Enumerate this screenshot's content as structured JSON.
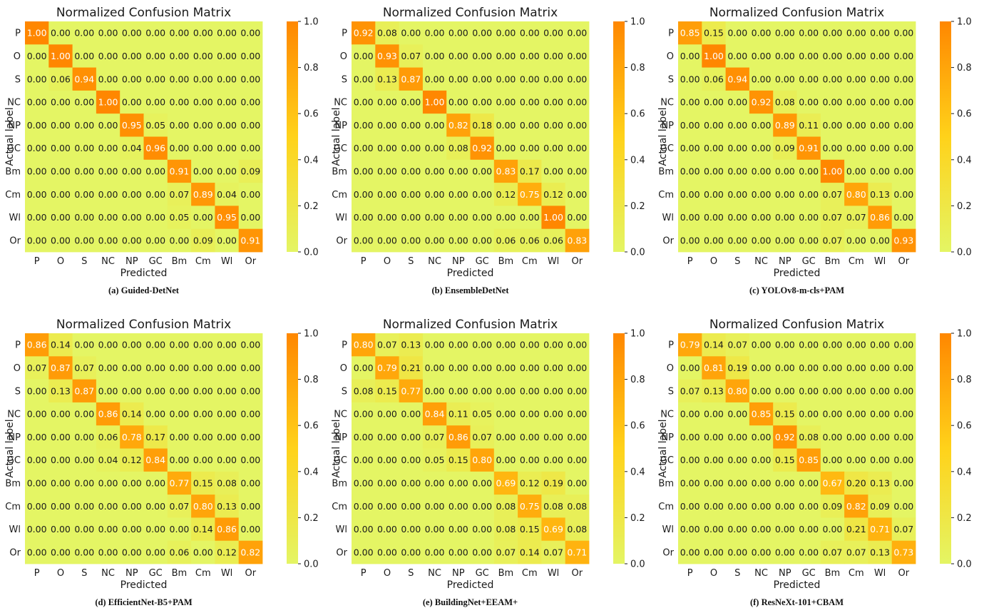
{
  "colors": {
    "low": "#e4f564",
    "mid": "#ffd21a",
    "high": "#ff8700",
    "text_dark": "#1a1a1a",
    "text_light": "#ffffff"
  },
  "colorbar_ticks": [
    "0.0",
    "0.2",
    "0.4",
    "0.6",
    "0.8",
    "1.0"
  ],
  "chart_data": [
    {
      "type": "heatmap",
      "title": "Normalized Confusion Matrix",
      "caption": "(a) Guided-DetNet",
      "xlabel": "Predicted",
      "ylabel": "Actual label",
      "x_categories": [
        "P",
        "O",
        "S",
        "NC",
        "NP",
        "GC",
        "Bm",
        "Cm",
        "Wl",
        "Or"
      ],
      "y_categories": [
        "P",
        "O",
        "S",
        "NC",
        "NP",
        "GC",
        "Bm",
        "Cm",
        "Wl",
        "Or"
      ],
      "zlim": [
        0.0,
        1.0
      ],
      "values": [
        [
          1.0,
          0.0,
          0.0,
          0.0,
          0.0,
          0.0,
          0.0,
          0.0,
          0.0,
          0.0
        ],
        [
          0.0,
          1.0,
          0.0,
          0.0,
          0.0,
          0.0,
          0.0,
          0.0,
          0.0,
          0.0
        ],
        [
          0.0,
          0.06,
          0.94,
          0.0,
          0.0,
          0.0,
          0.0,
          0.0,
          0.0,
          0.0
        ],
        [
          0.0,
          0.0,
          0.0,
          1.0,
          0.0,
          0.0,
          0.0,
          0.0,
          0.0,
          0.0
        ],
        [
          0.0,
          0.0,
          0.0,
          0.0,
          0.95,
          0.05,
          0.0,
          0.0,
          0.0,
          0.0
        ],
        [
          0.0,
          0.0,
          0.0,
          0.0,
          0.04,
          0.96,
          0.0,
          0.0,
          0.0,
          0.0
        ],
        [
          0.0,
          0.0,
          0.0,
          0.0,
          0.0,
          0.0,
          0.91,
          0.0,
          0.0,
          0.09
        ],
        [
          0.0,
          0.0,
          0.0,
          0.0,
          0.0,
          0.0,
          0.07,
          0.89,
          0.04,
          0.0
        ],
        [
          0.0,
          0.0,
          0.0,
          0.0,
          0.0,
          0.0,
          0.05,
          0.0,
          0.95,
          0.0
        ],
        [
          0.0,
          0.0,
          0.0,
          0.0,
          0.0,
          0.0,
          0.0,
          0.09,
          0.0,
          0.91
        ]
      ]
    },
    {
      "type": "heatmap",
      "title": "Normalized Confusion Matrix",
      "caption": "(b) EnsembleDetNet",
      "xlabel": "Predicted",
      "ylabel": "Actual label",
      "x_categories": [
        "P",
        "O",
        "S",
        "NC",
        "NP",
        "GC",
        "Bm",
        "Cm",
        "Wl",
        "Or"
      ],
      "y_categories": [
        "P",
        "O",
        "S",
        "NC",
        "NP",
        "GC",
        "Bm",
        "Cm",
        "Wl",
        "Or"
      ],
      "zlim": [
        0.0,
        1.0
      ],
      "values": [
        [
          0.92,
          0.08,
          0.0,
          0.0,
          0.0,
          0.0,
          0.0,
          0.0,
          0.0,
          0.0
        ],
        [
          0.0,
          0.93,
          0.07,
          0.0,
          0.0,
          0.0,
          0.0,
          0.0,
          0.0,
          0.0
        ],
        [
          0.0,
          0.13,
          0.87,
          0.0,
          0.0,
          0.0,
          0.0,
          0.0,
          0.0,
          0.0
        ],
        [
          0.0,
          0.0,
          0.0,
          1.0,
          0.0,
          0.0,
          0.0,
          0.0,
          0.0,
          0.0
        ],
        [
          0.0,
          0.0,
          0.0,
          0.0,
          0.82,
          0.18,
          0.0,
          0.0,
          0.0,
          0.0
        ],
        [
          0.0,
          0.0,
          0.0,
          0.0,
          0.08,
          0.92,
          0.0,
          0.0,
          0.0,
          0.0
        ],
        [
          0.0,
          0.0,
          0.0,
          0.0,
          0.0,
          0.0,
          0.83,
          0.17,
          0.0,
          0.0
        ],
        [
          0.0,
          0.0,
          0.0,
          0.0,
          0.0,
          0.0,
          0.12,
          0.75,
          0.12,
          0.0
        ],
        [
          0.0,
          0.0,
          0.0,
          0.0,
          0.0,
          0.0,
          0.0,
          0.0,
          1.0,
          0.0
        ],
        [
          0.0,
          0.0,
          0.0,
          0.0,
          0.0,
          0.0,
          0.06,
          0.06,
          0.06,
          0.83
        ]
      ]
    },
    {
      "type": "heatmap",
      "title": "Normalized Confusion Matrix",
      "caption": "(c) YOLOv8-m-cls+PAM",
      "xlabel": "Predicted",
      "ylabel": "Actual label",
      "x_categories": [
        "P",
        "O",
        "S",
        "NC",
        "NP",
        "GC",
        "Bm",
        "Cm",
        "Wl",
        "Or"
      ],
      "y_categories": [
        "P",
        "O",
        "S",
        "NC",
        "NP",
        "GC",
        "Bm",
        "Cm",
        "Wl",
        "Or"
      ],
      "zlim": [
        0.0,
        1.0
      ],
      "values": [
        [
          0.85,
          0.15,
          0.0,
          0.0,
          0.0,
          0.0,
          0.0,
          0.0,
          0.0,
          0.0
        ],
        [
          0.0,
          1.0,
          0.0,
          0.0,
          0.0,
          0.0,
          0.0,
          0.0,
          0.0,
          0.0
        ],
        [
          0.0,
          0.06,
          0.94,
          0.0,
          0.0,
          0.0,
          0.0,
          0.0,
          0.0,
          0.0
        ],
        [
          0.0,
          0.0,
          0.0,
          0.92,
          0.08,
          0.0,
          0.0,
          0.0,
          0.0,
          0.0
        ],
        [
          0.0,
          0.0,
          0.0,
          0.0,
          0.89,
          0.11,
          0.0,
          0.0,
          0.0,
          0.0
        ],
        [
          0.0,
          0.0,
          0.0,
          0.0,
          0.09,
          0.91,
          0.0,
          0.0,
          0.0,
          0.0
        ],
        [
          0.0,
          0.0,
          0.0,
          0.0,
          0.0,
          0.0,
          1.0,
          0.0,
          0.0,
          0.0
        ],
        [
          0.0,
          0.0,
          0.0,
          0.0,
          0.0,
          0.0,
          0.07,
          0.8,
          0.13,
          0.0
        ],
        [
          0.0,
          0.0,
          0.0,
          0.0,
          0.0,
          0.0,
          0.07,
          0.07,
          0.86,
          0.0
        ],
        [
          0.0,
          0.0,
          0.0,
          0.0,
          0.0,
          0.0,
          0.07,
          0.0,
          0.0,
          0.93
        ]
      ]
    },
    {
      "type": "heatmap",
      "title": "Normalized Confusion Matrix",
      "caption": "(d) EfficientNet-B5+PAM",
      "xlabel": "Predicted",
      "ylabel": "Actual label",
      "x_categories": [
        "P",
        "O",
        "S",
        "NC",
        "NP",
        "GC",
        "Bm",
        "Cm",
        "Wl",
        "Or"
      ],
      "y_categories": [
        "P",
        "O",
        "S",
        "NC",
        "NP",
        "GC",
        "Bm",
        "Cm",
        "Wl",
        "Or"
      ],
      "zlim": [
        0.0,
        1.0
      ],
      "values": [
        [
          0.86,
          0.14,
          0.0,
          0.0,
          0.0,
          0.0,
          0.0,
          0.0,
          0.0,
          0.0
        ],
        [
          0.07,
          0.87,
          0.07,
          0.0,
          0.0,
          0.0,
          0.0,
          0.0,
          0.0,
          0.0
        ],
        [
          0.0,
          0.13,
          0.87,
          0.0,
          0.0,
          0.0,
          0.0,
          0.0,
          0.0,
          0.0
        ],
        [
          0.0,
          0.0,
          0.0,
          0.86,
          0.14,
          0.0,
          0.0,
          0.0,
          0.0,
          0.0
        ],
        [
          0.0,
          0.0,
          0.0,
          0.06,
          0.78,
          0.17,
          0.0,
          0.0,
          0.0,
          0.0
        ],
        [
          0.0,
          0.0,
          0.0,
          0.04,
          0.12,
          0.84,
          0.0,
          0.0,
          0.0,
          0.0
        ],
        [
          0.0,
          0.0,
          0.0,
          0.0,
          0.0,
          0.0,
          0.77,
          0.15,
          0.08,
          0.0
        ],
        [
          0.0,
          0.0,
          0.0,
          0.0,
          0.0,
          0.0,
          0.07,
          0.8,
          0.13,
          0.0
        ],
        [
          0.0,
          0.0,
          0.0,
          0.0,
          0.0,
          0.0,
          0.0,
          0.14,
          0.86,
          0.0
        ],
        [
          0.0,
          0.0,
          0.0,
          0.0,
          0.0,
          0.0,
          0.06,
          0.0,
          0.12,
          0.82
        ]
      ]
    },
    {
      "type": "heatmap",
      "title": "Normalized Confusion Matrix",
      "caption": "(e) BuildingNet+EEAM+",
      "xlabel": "Predicted",
      "ylabel": "Actual label",
      "x_categories": [
        "P",
        "O",
        "S",
        "NC",
        "NP",
        "GC",
        "Bm",
        "Cm",
        "Wl",
        "Or"
      ],
      "y_categories": [
        "P",
        "O",
        "S",
        "NC",
        "NP",
        "GC",
        "Bm",
        "Cm",
        "Wl",
        "Or"
      ],
      "zlim": [
        0.0,
        1.0
      ],
      "values": [
        [
          0.8,
          0.07,
          0.13,
          0.0,
          0.0,
          0.0,
          0.0,
          0.0,
          0.0,
          0.0
        ],
        [
          0.0,
          0.79,
          0.21,
          0.0,
          0.0,
          0.0,
          0.0,
          0.0,
          0.0,
          0.0
        ],
        [
          0.08,
          0.15,
          0.77,
          0.0,
          0.0,
          0.0,
          0.0,
          0.0,
          0.0,
          0.0
        ],
        [
          0.0,
          0.0,
          0.0,
          0.84,
          0.11,
          0.05,
          0.0,
          0.0,
          0.0,
          0.0
        ],
        [
          0.0,
          0.0,
          0.0,
          0.07,
          0.86,
          0.07,
          0.0,
          0.0,
          0.0,
          0.0
        ],
        [
          0.0,
          0.0,
          0.0,
          0.05,
          0.15,
          0.8,
          0.0,
          0.0,
          0.0,
          0.0
        ],
        [
          0.0,
          0.0,
          0.0,
          0.0,
          0.0,
          0.0,
          0.69,
          0.12,
          0.19,
          0.0
        ],
        [
          0.0,
          0.0,
          0.0,
          0.0,
          0.0,
          0.0,
          0.08,
          0.75,
          0.08,
          0.08
        ],
        [
          0.0,
          0.0,
          0.0,
          0.0,
          0.0,
          0.0,
          0.08,
          0.15,
          0.69,
          0.08
        ],
        [
          0.0,
          0.0,
          0.0,
          0.0,
          0.0,
          0.0,
          0.07,
          0.14,
          0.07,
          0.71
        ]
      ]
    },
    {
      "type": "heatmap",
      "title": "Normalized Confusion Matrix",
      "caption": "(f) ResNeXt-101+CBAM",
      "xlabel": "Predicted",
      "ylabel": "Actual label",
      "x_categories": [
        "P",
        "O",
        "S",
        "NC",
        "NP",
        "GC",
        "Bm",
        "Cm",
        "Wl",
        "Or"
      ],
      "y_categories": [
        "P",
        "O",
        "S",
        "NC",
        "NP",
        "GC",
        "Bm",
        "Cm",
        "Wl",
        "Or"
      ],
      "zlim": [
        0.0,
        1.0
      ],
      "values": [
        [
          0.79,
          0.14,
          0.07,
          0.0,
          0.0,
          0.0,
          0.0,
          0.0,
          0.0,
          0.0
        ],
        [
          0.0,
          0.81,
          0.19,
          0.0,
          0.0,
          0.0,
          0.0,
          0.0,
          0.0,
          0.0
        ],
        [
          0.07,
          0.13,
          0.8,
          0.0,
          0.0,
          0.0,
          0.0,
          0.0,
          0.0,
          0.0
        ],
        [
          0.0,
          0.0,
          0.0,
          0.85,
          0.15,
          0.0,
          0.0,
          0.0,
          0.0,
          0.0
        ],
        [
          0.0,
          0.0,
          0.0,
          0.0,
          0.92,
          0.08,
          0.0,
          0.0,
          0.0,
          0.0
        ],
        [
          0.0,
          0.0,
          0.0,
          0.0,
          0.15,
          0.85,
          0.0,
          0.0,
          0.0,
          0.0
        ],
        [
          0.0,
          0.0,
          0.0,
          0.0,
          0.0,
          0.0,
          0.67,
          0.2,
          0.13,
          0.0
        ],
        [
          0.0,
          0.0,
          0.0,
          0.0,
          0.0,
          0.0,
          0.09,
          0.82,
          0.09,
          0.0
        ],
        [
          0.0,
          0.0,
          0.0,
          0.0,
          0.0,
          0.0,
          0.0,
          0.21,
          0.71,
          0.07
        ],
        [
          0.0,
          0.0,
          0.0,
          0.0,
          0.0,
          0.0,
          0.07,
          0.07,
          0.13,
          0.73
        ]
      ]
    }
  ]
}
